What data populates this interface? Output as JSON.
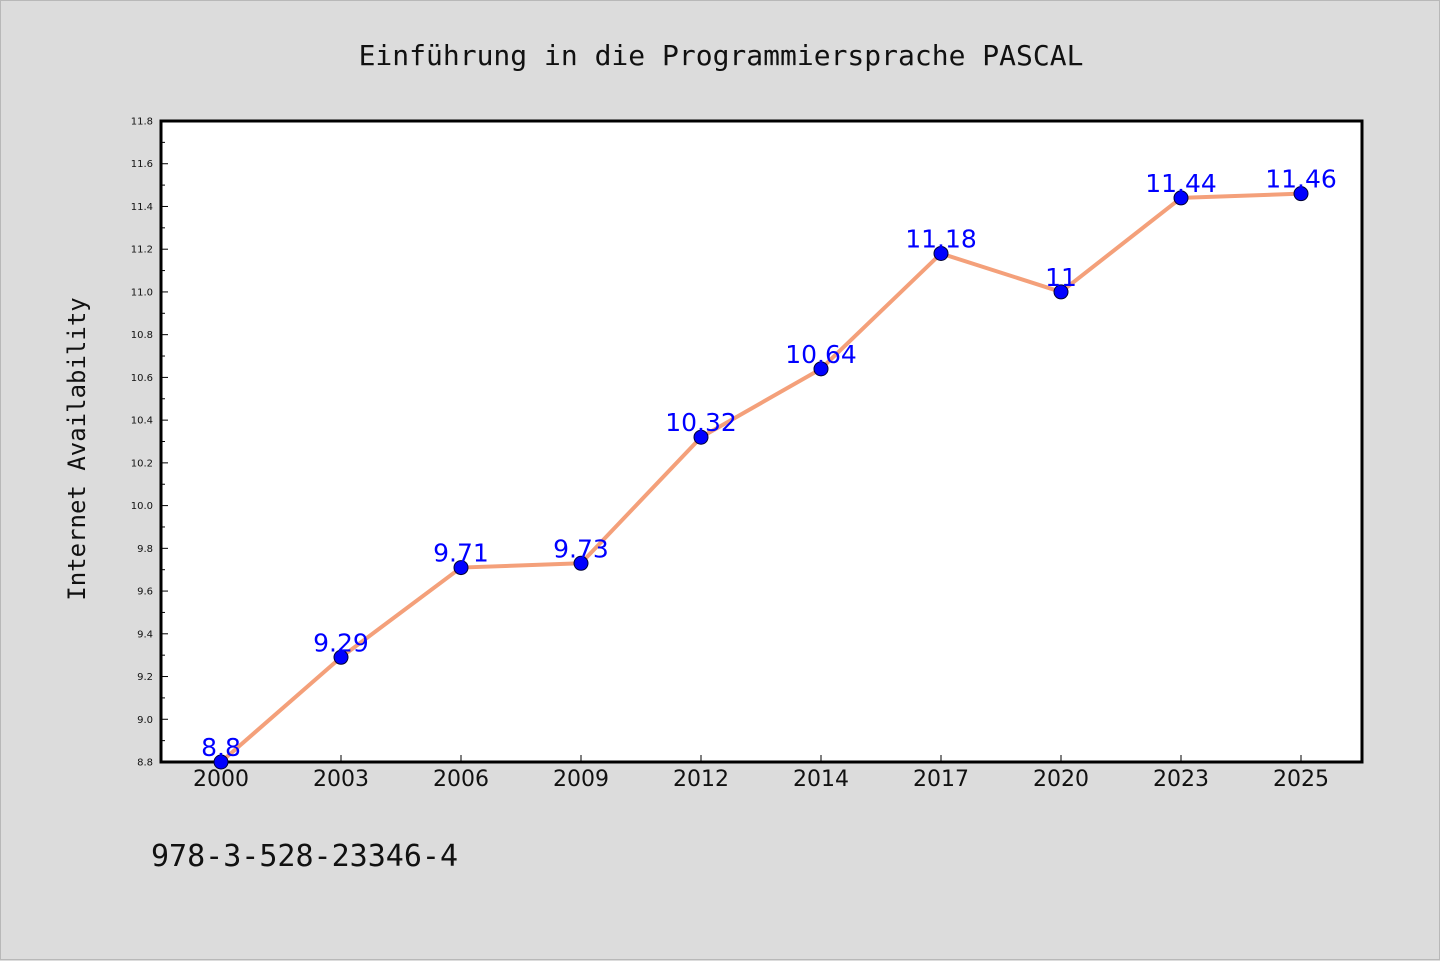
{
  "chart_data": {
    "type": "line",
    "title": "Einführung in die Programmiersprache PASCAL",
    "ylabel": "Internet Availability",
    "xlabel": "",
    "categories": [
      "2000",
      "2003",
      "2006",
      "2009",
      "2012",
      "2014",
      "2017",
      "2020",
      "2023",
      "2025"
    ],
    "values": [
      8.8,
      9.29,
      9.71,
      9.73,
      10.32,
      10.64,
      11.18,
      11,
      11.44,
      11.46
    ],
    "data_labels": [
      "8.8",
      "9.29",
      "9.71",
      "9.73",
      "10.32",
      "10.64",
      "11.18",
      "11",
      "11.44",
      "11.46"
    ],
    "ylim": [
      8.8,
      11.8
    ],
    "yticks": [
      "8.8",
      "9.0",
      "9.2",
      "9.4",
      "9.6",
      "9.8",
      "10.0",
      "10.2",
      "10.4",
      "10.6",
      "10.8",
      "11.0",
      "11.2",
      "11.4",
      "11.6",
      "11.8"
    ],
    "grid": false,
    "line_color": "#f4a07a",
    "marker_color": "#0000ff",
    "label_color": "#0000ff"
  },
  "footer": {
    "isbn": "978-3-528-23346-4"
  }
}
